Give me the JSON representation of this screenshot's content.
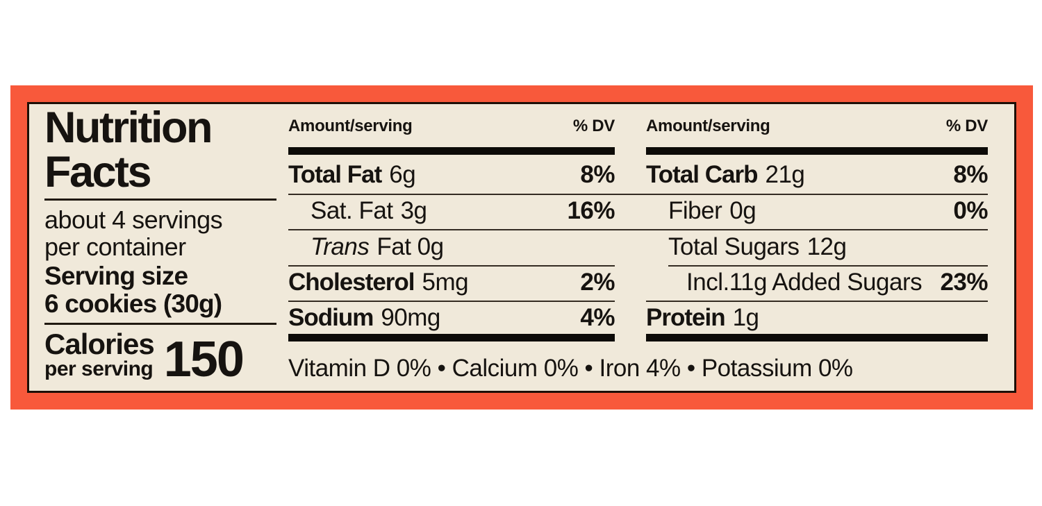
{
  "label": {
    "title": {
      "line1": "Nutrition",
      "line2": "Facts"
    },
    "servings": {
      "line1": "about 4 servings",
      "line2": "per container"
    },
    "serving_size": {
      "label": "Serving size",
      "value": "6 cookies (30g)"
    },
    "calories": {
      "label": "Calories",
      "sublabel": "per serving",
      "value": "150"
    },
    "columns": [
      {
        "header": {
          "amount": "Amount/serving",
          "dv": "% DV"
        },
        "rows": [
          {
            "name": "Total Fat",
            "amount": "6g",
            "dv": "8%"
          },
          {
            "name": "Sat. Fat",
            "amount": "3g",
            "dv": "16%"
          },
          {
            "name": "Trans",
            "amount": "Fat 0g",
            "dv": ""
          },
          {
            "name": "Cholesterol",
            "amount": "5mg",
            "dv": "2%"
          },
          {
            "name": "Sodium",
            "amount": "90mg",
            "dv": "4%"
          }
        ]
      },
      {
        "header": {
          "amount": "Amount/serving",
          "dv": "% DV"
        },
        "rows": [
          {
            "name": "Total Carb",
            "amount": "21g",
            "dv": "8%"
          },
          {
            "name": "Fiber",
            "amount": "0g",
            "dv": "0%"
          },
          {
            "name": "Total Sugars",
            "amount": "12g",
            "dv": ""
          },
          {
            "name": "Incl.11g Added Sugars",
            "amount": "",
            "dv": "23%"
          },
          {
            "name": "Protein",
            "amount": "1g",
            "dv": ""
          }
        ]
      }
    ],
    "micronutrients": "Vitamin D 0% • Calcium 0% • Iron 4% • Potassium 0%",
    "colors": {
      "border_orange": "#F8593B",
      "background_cream": "#F0E9DA",
      "text_black": "#161310"
    }
  }
}
